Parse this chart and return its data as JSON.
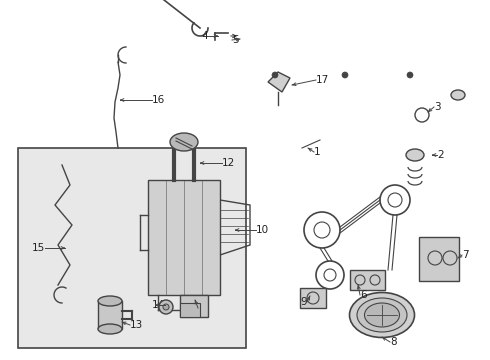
{
  "fig_width": 4.9,
  "fig_height": 3.6,
  "dpi": 100,
  "line_color": "#444444",
  "label_color": "#222222",
  "bg_box_color": "#e8e8e8",
  "white": "#ffffff"
}
